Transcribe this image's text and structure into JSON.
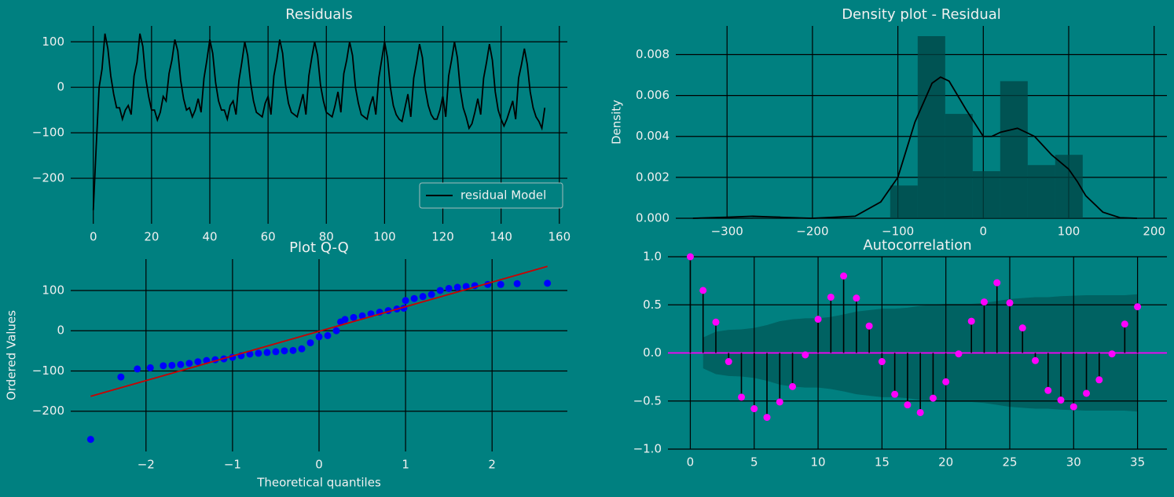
{
  "chart_data": [
    {
      "type": "line",
      "title": "Residuals",
      "x": [
        0,
        1,
        2,
        3,
        4,
        5,
        6,
        7,
        8,
        9,
        10,
        11,
        12,
        13,
        14,
        15,
        16,
        17,
        18,
        19,
        20,
        21,
        22,
        23,
        24,
        25,
        26,
        27,
        28,
        29,
        30,
        31,
        32,
        33,
        34,
        35,
        36,
        37,
        38,
        39,
        40,
        41,
        42,
        43,
        44,
        45,
        46,
        47,
        48,
        49,
        50,
        51,
        52,
        53,
        54,
        55,
        56,
        57,
        58,
        59,
        60,
        61,
        62,
        63,
        64,
        65,
        66,
        67,
        68,
        69,
        70,
        71,
        72,
        73,
        74,
        75,
        76,
        77,
        78,
        79,
        80,
        81,
        82,
        83,
        84,
        85,
        86,
        87,
        88,
        89,
        90,
        91,
        92,
        93,
        94,
        95,
        96,
        97,
        98,
        99,
        100,
        101,
        102,
        103,
        104,
        105,
        106,
        107,
        108,
        109,
        110,
        111,
        112,
        113,
        114,
        115,
        116,
        117,
        118,
        119,
        120,
        121,
        122,
        123,
        124,
        125,
        126,
        127,
        128,
        129,
        130,
        131,
        132,
        133,
        134,
        135,
        136,
        137,
        138,
        139,
        140,
        141,
        142,
        143,
        144,
        145,
        146,
        147,
        148,
        149,
        150,
        151,
        152,
        153,
        154,
        155
      ],
      "series": [
        {
          "name": "residual Model",
          "color": "#000000",
          "values": [
            -270,
            -130,
            0,
            40,
            118,
            85,
            25,
            -15,
            -45,
            -45,
            -70,
            -50,
            -40,
            -60,
            25,
            55,
            118,
            90,
            20,
            -20,
            -50,
            -50,
            -72,
            -55,
            -20,
            -30,
            30,
            60,
            105,
            80,
            15,
            -25,
            -50,
            -45,
            -65,
            -50,
            -25,
            -55,
            20,
            60,
            105,
            75,
            10,
            -30,
            -50,
            -50,
            -70,
            -40,
            -30,
            -60,
            15,
            55,
            100,
            70,
            10,
            -30,
            -55,
            -60,
            -65,
            -35,
            -20,
            -60,
            25,
            60,
            105,
            75,
            5,
            -35,
            -55,
            -60,
            -65,
            -40,
            -15,
            -60,
            25,
            65,
            100,
            70,
            5,
            -30,
            -55,
            -60,
            -65,
            -40,
            -10,
            -55,
            30,
            60,
            100,
            70,
            0,
            -35,
            -60,
            -65,
            -70,
            -40,
            -20,
            -60,
            20,
            60,
            100,
            65,
            0,
            -40,
            -60,
            -70,
            -75,
            -45,
            -15,
            -65,
            20,
            55,
            95,
            65,
            -5,
            -40,
            -60,
            -70,
            -70,
            -50,
            -20,
            -65,
            25,
            60,
            100,
            65,
            -5,
            -45,
            -65,
            -90,
            -80,
            -55,
            -25,
            -60,
            20,
            55,
            95,
            60,
            -10,
            -50,
            -70,
            -85,
            -70,
            -50,
            -30,
            -70,
            20,
            50,
            85,
            50,
            -10,
            -45,
            -65,
            -75,
            -90,
            -45
          ]
        }
      ],
      "xlim": [
        -7.75,
        162.75
      ],
      "ylim": [
        -300,
        135
      ],
      "xticks": [
        0,
        20,
        40,
        60,
        80,
        100,
        120,
        140,
        160
      ],
      "yticks": [
        {
          "value": -200,
          "label": "−200"
        },
        {
          "value": -100,
          "label": "−100"
        },
        0,
        100
      ],
      "grid": true,
      "legend": "lower right"
    },
    {
      "type": "histogram",
      "title": "Density plot - Residual",
      "ylabel": "Density",
      "bins": [
        -270,
        -237.8,
        -205.6,
        -173.4,
        -141.2,
        -109,
        -76.8,
        -44.6,
        -12.4,
        19.8,
        52,
        84.2,
        116.4
      ],
      "values": [
        0.0001,
        0,
        0,
        0,
        0,
        0.0016,
        0.0089,
        0.0051,
        0.0023,
        0.0067,
        0.0026,
        0.0031
      ],
      "color": "#004444",
      "density_curve": {
        "color": "#000000",
        "x": [
          -340,
          -300,
          -270,
          -240,
          -200,
          -150,
          -120,
          -100,
          -80,
          -60,
          -50,
          -40,
          -20,
          0,
          10,
          20,
          40,
          60,
          80,
          100,
          110,
          120,
          140,
          160,
          180
        ],
        "values": [
          0,
          5e-05,
          0.0001,
          5e-05,
          0,
          0.0001,
          0.0008,
          0.002,
          0.0047,
          0.0066,
          0.0069,
          0.0067,
          0.0053,
          0.004,
          0.004,
          0.0042,
          0.0044,
          0.004,
          0.0031,
          0.0024,
          0.0018,
          0.0011,
          0.0003,
          3e-05,
          0
        ]
      },
      "xlim": [
        -360,
        215
      ],
      "ylim": [
        0,
        0.0094
      ],
      "xticks": [
        {
          "value": -300,
          "label": "−300"
        },
        {
          "value": -200,
          "label": "−200"
        },
        {
          "value": -100,
          "label": "−100"
        },
        0,
        100,
        200
      ],
      "yticks": [
        {
          "value": 0,
          "label": "0.000"
        },
        {
          "value": 0.002,
          "label": "0.002"
        },
        {
          "value": 0.004,
          "label": "0.004"
        },
        {
          "value": 0.006,
          "label": "0.006"
        },
        {
          "value": 0.008,
          "label": "0.008"
        }
      ],
      "grid": true
    },
    {
      "type": "scatter",
      "title": "Plot Q-Q",
      "xlabel": "Theoretical quantiles",
      "ylabel": "Ordered Values",
      "x": [
        -2.64,
        -2.29,
        -2.1,
        -1.95,
        -1.8,
        -1.7,
        -1.6,
        -1.5,
        -1.4,
        -1.3,
        -1.2,
        -1.1,
        -1.0,
        -0.9,
        -0.8,
        -0.7,
        -0.6,
        -0.5,
        -0.4,
        -0.3,
        -0.2,
        -0.1,
        0,
        0.1,
        0.2,
        0.25,
        0.3,
        0.4,
        0.5,
        0.6,
        0.7,
        0.8,
        0.9,
        0.98,
        1.0,
        1.1,
        1.2,
        1.3,
        1.4,
        1.5,
        1.6,
        1.7,
        1.8,
        1.95,
        2.1,
        2.29,
        2.64
      ],
      "values": [
        -270,
        -115,
        -95,
        -92,
        -87,
        -86,
        -84,
        -81,
        -77,
        -74,
        -72,
        -70,
        -66,
        -62,
        -58,
        -56,
        -54,
        -52,
        -50,
        -49,
        -45,
        -30,
        -15,
        -12,
        0,
        22,
        28,
        33,
        37,
        42,
        46,
        50,
        54,
        56,
        75,
        80,
        85,
        90,
        100,
        105,
        108,
        110,
        112,
        115,
        115,
        117,
        118
      ],
      "color": "#0000ff",
      "fit_line": {
        "color": "#cc0000",
        "x": [
          -2.64,
          2.64
        ],
        "values": [
          -163,
          160
        ]
      },
      "xlim": [
        -2.87,
        2.87
      ],
      "ylim": [
        -300,
        178
      ],
      "xticks": [
        {
          "value": -2,
          "label": "−2"
        },
        {
          "value": -1,
          "label": "−1"
        },
        0,
        1,
        2
      ],
      "yticks": [
        {
          "value": -200,
          "label": "−200"
        },
        {
          "value": -100,
          "label": "−100"
        },
        0,
        100
      ],
      "grid": true
    },
    {
      "type": "stem",
      "title": "Autocorrelation",
      "x": [
        0,
        1,
        2,
        3,
        4,
        5,
        6,
        7,
        8,
        9,
        10,
        11,
        12,
        13,
        14,
        15,
        16,
        17,
        18,
        19,
        20,
        21,
        22,
        23,
        24,
        25,
        26,
        27,
        28,
        29,
        30,
        31,
        32,
        33,
        34,
        35
      ],
      "values": [
        1,
        0.65,
        0.32,
        -0.09,
        -0.46,
        -0.58,
        -0.67,
        -0.51,
        -0.35,
        -0.02,
        0.35,
        0.58,
        0.8,
        0.57,
        0.28,
        -0.09,
        -0.43,
        -0.54,
        -0.62,
        -0.47,
        -0.3,
        -0.01,
        0.33,
        0.53,
        0.73,
        0.52,
        0.26,
        -0.08,
        -0.39,
        -0.49,
        -0.56,
        -0.42,
        -0.28,
        -0.01,
        0.3,
        0.48
      ],
      "conf": [
        null,
        0.16,
        0.22,
        0.24,
        0.245,
        0.26,
        0.29,
        0.33,
        0.35,
        0.36,
        0.36,
        0.375,
        0.4,
        0.43,
        0.445,
        0.46,
        0.46,
        0.47,
        0.49,
        0.5,
        0.51,
        0.51,
        0.51,
        0.52,
        0.54,
        0.56,
        0.57,
        0.58,
        0.58,
        0.59,
        0.595,
        0.6,
        0.6,
        0.6,
        0.6,
        0.61
      ],
      "color": "#ff00ff",
      "stem_color": "#000000",
      "conf_color": "#005a5a",
      "xlim": [
        -1.75,
        37.3
      ],
      "ylim": [
        -1,
        1
      ],
      "xticks": [
        0,
        5,
        10,
        15,
        20,
        25,
        30,
        35
      ],
      "yticks": [
        {
          "value": -1,
          "label": "−1.0"
        },
        {
          "value": -0.5,
          "label": "−0.5"
        },
        {
          "value": 0,
          "label": "0.0"
        },
        {
          "value": 0.5,
          "label": "0.5"
        },
        {
          "value": 1,
          "label": "1.0"
        }
      ],
      "grid": true
    }
  ]
}
